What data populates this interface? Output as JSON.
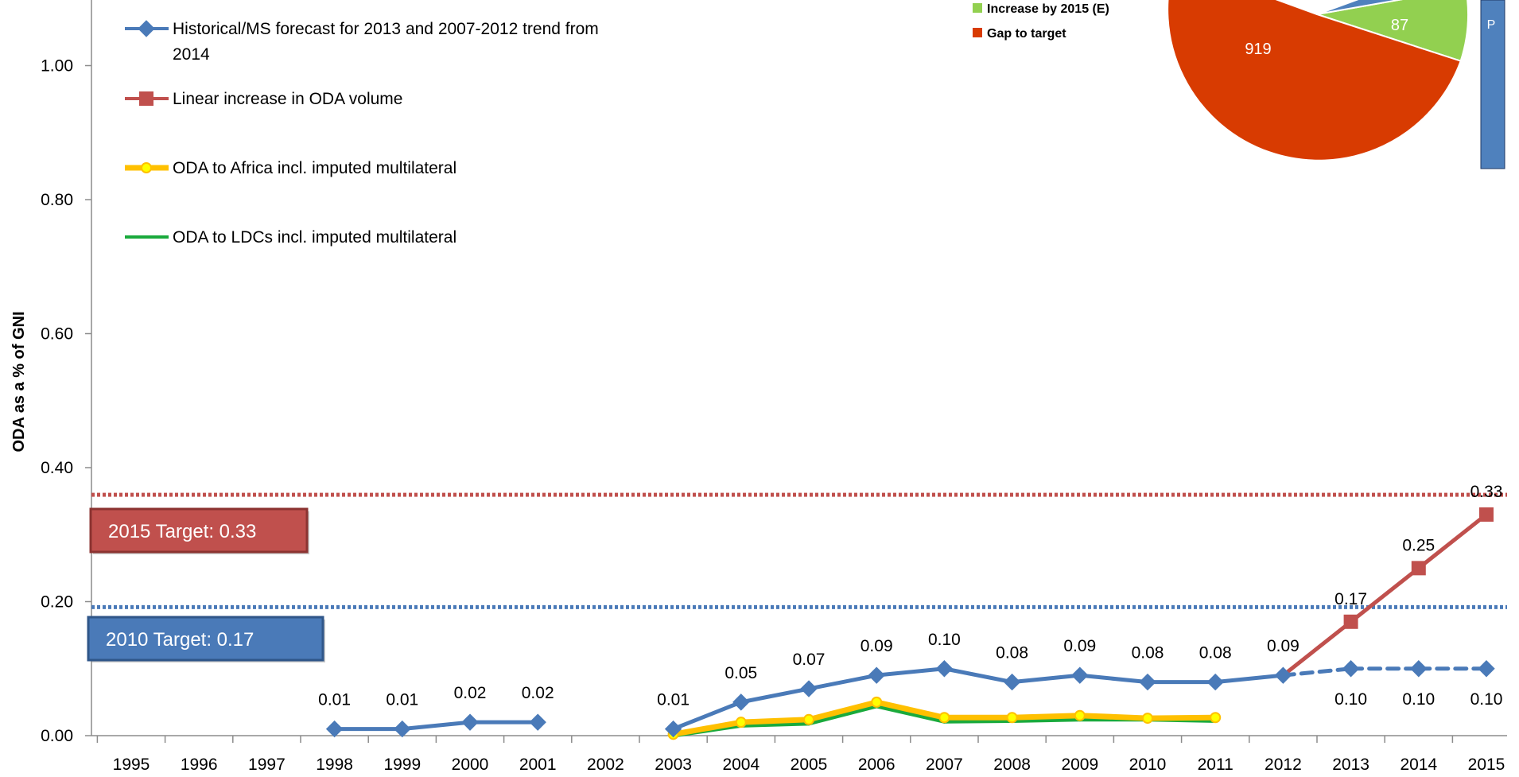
{
  "chart_data": {
    "type": "line",
    "ylabel": "ODA as a % of GNI",
    "xlabel": "",
    "ylim": [
      0,
      1.1
    ],
    "yticks": [
      "0.00",
      "0.20",
      "0.40",
      "0.60",
      "0.80",
      "1.00"
    ],
    "categories": [
      "1995",
      "1996",
      "1997",
      "1998",
      "1999",
      "2000",
      "2001",
      "2002",
      "2003",
      "2004",
      "2005",
      "2006",
      "2007",
      "2008",
      "2009",
      "2010",
      "2011",
      "2012",
      "2013",
      "2014",
      "2015"
    ],
    "series": [
      {
        "name": "Historical/MS forecast for 2013 and 2007-2012 trend from 2014",
        "color": "#4a7ab8",
        "marker": "diamond",
        "values": [
          null,
          null,
          null,
          0.01,
          0.01,
          0.02,
          0.02,
          null,
          0.01,
          0.05,
          0.07,
          0.09,
          0.1,
          0.08,
          0.09,
          0.08,
          0.08,
          0.09,
          0.1,
          0.1,
          0.1
        ],
        "labels": [
          null,
          null,
          null,
          "0.01",
          "0.01",
          "0.02",
          "0.02",
          null,
          "0.01",
          "0.05",
          "0.07",
          "0.09",
          "0.10",
          "0.08",
          "0.09",
          "0.08",
          "0.08",
          "0.09",
          "0.10",
          "0.10",
          "0.10"
        ],
        "dashed_from": "2012"
      },
      {
        "name": "Linear increase in ODA volume",
        "color": "#c0504d",
        "marker": "square",
        "values": [
          null,
          null,
          null,
          null,
          null,
          null,
          null,
          null,
          null,
          null,
          null,
          null,
          null,
          null,
          null,
          null,
          null,
          0.09,
          0.17,
          0.25,
          0.33
        ],
        "labels": [
          null,
          null,
          null,
          null,
          null,
          null,
          null,
          null,
          null,
          null,
          null,
          null,
          null,
          null,
          null,
          null,
          null,
          null,
          "0.17",
          "0.25",
          "0.33"
        ]
      },
      {
        "name": "ODA to Africa incl. imputed multilateral",
        "color": "#ffc000",
        "marker": "circle",
        "values": [
          null,
          null,
          null,
          null,
          null,
          null,
          null,
          null,
          0.002,
          0.02,
          0.024,
          0.05,
          0.027,
          0.027,
          0.03,
          0.026,
          0.027,
          null,
          null,
          null,
          null
        ],
        "labels": []
      },
      {
        "name": "ODA to LDCs incl. imputed multilateral",
        "color": "#1aaa3c",
        "marker": "none",
        "values": [
          null,
          null,
          null,
          null,
          null,
          null,
          null,
          null,
          0.0,
          0.015,
          0.018,
          0.044,
          0.021,
          0.022,
          0.024,
          0.024,
          0.022,
          null,
          null,
          null,
          null
        ],
        "labels": []
      }
    ],
    "targets": [
      {
        "label": "2015 Target: 0.33",
        "value": 0.35,
        "color": "#c0504d"
      },
      {
        "label": "2010 Target: 0.17",
        "value": 0.18,
        "color": "#4a7ab8"
      }
    ],
    "legend_placement": "top-left",
    "grid": false
  },
  "inset_pie": {
    "legend": [
      {
        "label": "Increase by 2015 (E)",
        "color": "#92d050"
      },
      {
        "label": "Gap to target",
        "color": "#d83b01"
      }
    ],
    "slice_labels": [
      "87",
      "919"
    ],
    "bar_label": "P"
  }
}
